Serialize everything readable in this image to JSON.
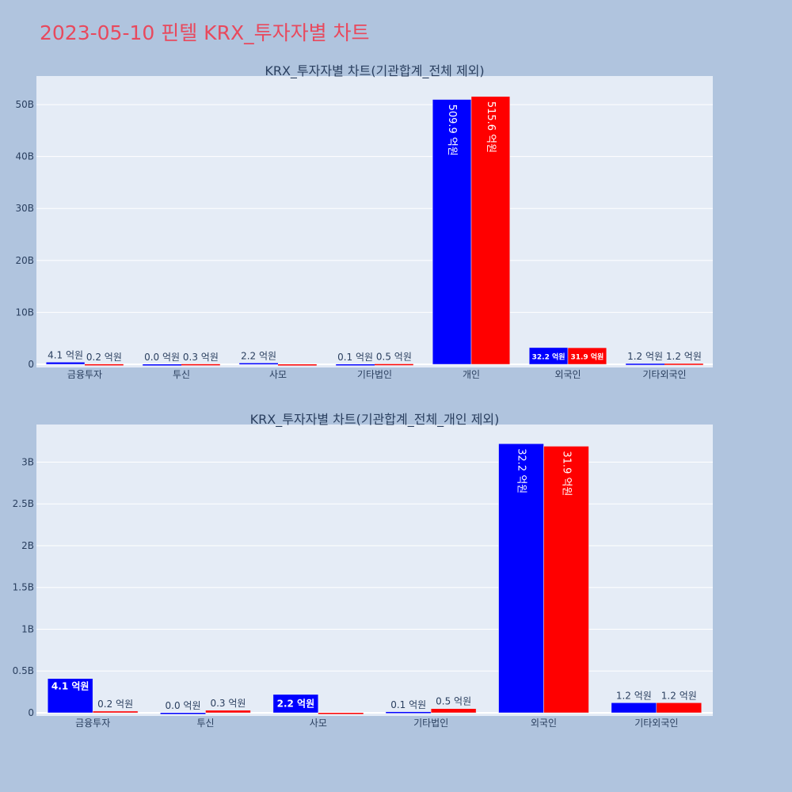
{
  "title": "2023-05-10 핀텔 KRX_투자자별 차트",
  "colors": {
    "buy": "#0000ff",
    "sell": "#ff0000",
    "plot_bg": "#e5ecf6",
    "page_bg": "#b0c4de",
    "title": "#e8495d",
    "text": "#2a3f5f"
  },
  "chart_data": [
    {
      "type": "bar",
      "title": "KRX_투자자별 차트(기관합계_전체 제외)",
      "categories": [
        "금융투자",
        "투신",
        "사모",
        "기타법인",
        "개인",
        "외국인",
        "기타외국인"
      ],
      "series": [
        {
          "values": [
            410000000,
            0,
            220000000,
            10000000,
            50990000000,
            3220000000,
            120000000
          ],
          "labels": [
            "4.1 억원",
            "0.0 억원",
            "2.2 억원",
            "0.1 억원",
            "509.9 억원",
            "32.2 억원",
            "1.2 억원"
          ]
        },
        {
          "values": [
            20000000,
            30000000,
            0,
            50000000,
            51560000000,
            3190000000,
            120000000
          ],
          "labels": [
            "0.2 억원",
            "0.3 억원",
            "",
            "0.5 억원",
            "515.6 억원",
            "31.9 억원",
            "1.2 억원"
          ]
        }
      ],
      "yticks": [
        0,
        10000000000,
        20000000000,
        30000000000,
        40000000000,
        50000000000
      ],
      "ytick_labels": [
        "0",
        "10B",
        "20B",
        "30B",
        "40B",
        "50B"
      ],
      "ylim": [
        0,
        55500000000
      ],
      "grid": true
    },
    {
      "type": "bar",
      "title": "KRX_투자자별 차트(기관합계_전체_개인 제외)",
      "categories": [
        "금융투자",
        "투신",
        "사모",
        "기타법인",
        "외국인",
        "기타외국인"
      ],
      "series": [
        {
          "values": [
            410000000,
            0,
            220000000,
            10000000,
            3220000000,
            120000000
          ],
          "labels": [
            "4.1 억원",
            "0.0 억원",
            "2.2 억원",
            "0.1 억원",
            "32.2 억원",
            "1.2 억원"
          ]
        },
        {
          "values": [
            20000000,
            30000000,
            0,
            50000000,
            3190000000,
            120000000
          ],
          "labels": [
            "0.2 억원",
            "0.3 억원",
            "",
            "0.5 억원",
            "31.9 억원",
            "1.2 억원"
          ]
        }
      ],
      "yticks": [
        0,
        500000000,
        1000000000,
        1500000000,
        2000000000,
        2500000000,
        3000000000
      ],
      "ytick_labels": [
        "0",
        "0.5B",
        "1B",
        "1.5B",
        "2B",
        "2.5B",
        "3B"
      ],
      "ylim": [
        0,
        3450000000
      ],
      "grid": true
    }
  ]
}
